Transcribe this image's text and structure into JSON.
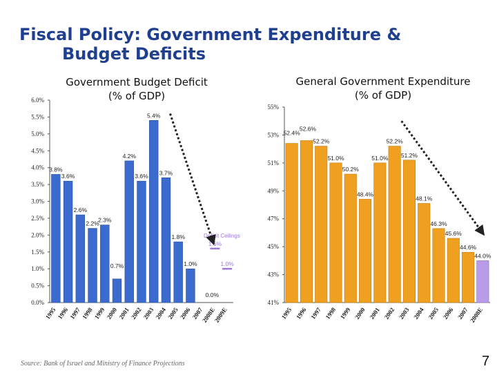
{
  "slide": {
    "title_line1": "Fiscal Policy: Government Expenditure &",
    "title_line2": "Budget Deficits",
    "source": "Source: Bank of Israel and Ministry of Finance Projections",
    "page_number": "7"
  },
  "colors": {
    "title": "#1f3f8f",
    "deficit_bar": "#3b6bcf",
    "expenditure_bar": "#f0a020",
    "projection_bar": "#b89ce8",
    "ceiling": "#9a7ad4",
    "trend_arrow": "#222222"
  },
  "chart_data": [
    {
      "type": "bar",
      "title_line1": "Government Budget Deficit",
      "title_line2": "(% of GDP)",
      "categories": [
        "1995",
        "1996",
        "1997",
        "1998",
        "1999",
        "2000",
        "2001",
        "2002",
        "2003",
        "2004",
        "2005",
        "2006",
        "2007",
        "2008E",
        "2009E"
      ],
      "values": [
        3.8,
        3.6,
        2.6,
        2.2,
        2.3,
        0.7,
        4.2,
        3.6,
        5.4,
        3.7,
        1.8,
        1.0,
        0.0,
        null,
        null
      ],
      "value_labels": [
        "3.8%",
        "3.6%",
        "2.6%",
        "2.2%",
        "2.3%",
        "0.7%",
        "4.2%",
        "3.6%",
        "5.4%",
        "3.7%",
        "1.8%",
        "1.0%",
        "0.0%",
        "",
        ""
      ],
      "y_ticks": [
        "0.0%",
        "0.5%",
        "1.0%",
        "1.5%",
        "2.0%",
        "2.5%",
        "3.0%",
        "3.5%",
        "4.0%",
        "4.5%",
        "5.0%",
        "5.5%",
        "6.0%"
      ],
      "ylim": [
        0,
        6
      ],
      "ceiling_label": "Deficit Ceilings",
      "ceilings": [
        {
          "category": "2008E",
          "value": 1.6,
          "label": "1.6%"
        },
        {
          "category": "2009E",
          "value": 1.0,
          "label": "1.0%"
        }
      ],
      "trend_arrow": {
        "from_category": "2004",
        "to_category": "2008E"
      },
      "grid": false
    },
    {
      "type": "bar",
      "title_line1": "General Government Expenditure",
      "title_line2": "(% of GDP)",
      "categories": [
        "1995",
        "1996",
        "1997",
        "1998",
        "1999",
        "2000",
        "2001",
        "2002",
        "2003",
        "2004",
        "2005",
        "2006",
        "2007",
        "2008E"
      ],
      "values": [
        52.4,
        52.6,
        52.2,
        51.0,
        50.2,
        48.4,
        51.0,
        52.2,
        51.2,
        48.1,
        46.3,
        45.6,
        44.6,
        44.0
      ],
      "value_labels": [
        "52.4%",
        "52.6%",
        "52.2%",
        "51.0%",
        "50.2%",
        "48.4%",
        "51.0%",
        "52.2%",
        "51.2%",
        "48.1%",
        "46.3%",
        "45.6%",
        "44.6%",
        "44.0%"
      ],
      "projection_categories": [
        "2008E"
      ],
      "y_ticks": [
        "41%",
        "43%",
        "45%",
        "47%",
        "49%",
        "51%",
        "53%",
        "55%"
      ],
      "ylim": [
        41,
        55
      ],
      "trend_arrow": {
        "from_category": "2002",
        "to_category": "2008E"
      },
      "grid": false
    }
  ]
}
